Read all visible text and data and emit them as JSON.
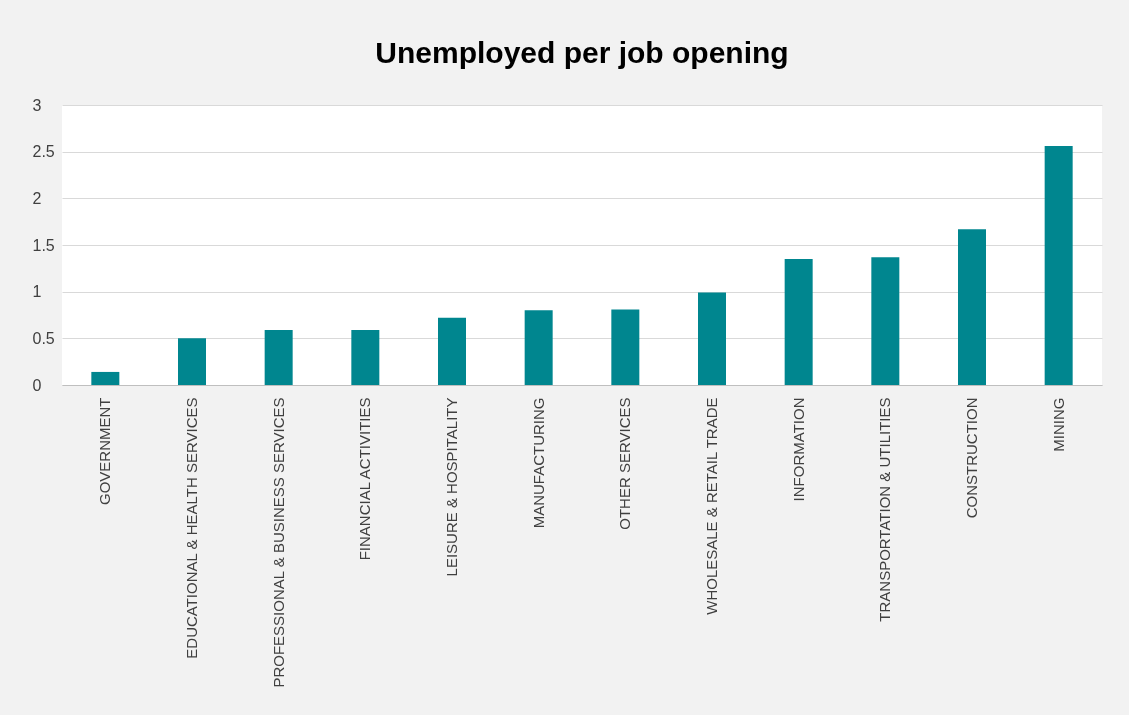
{
  "chart_data": {
    "type": "bar",
    "title": "Unemployed per job opening",
    "categories": [
      "GOVERNMENT",
      "EDUCATIONAL & HEALTH SERVICES",
      "PROFESSIONAL & BUSINESS SERVICES",
      "FINANCIAL ACTIVITIES",
      "LEISURE & HOSPITALITY",
      "MANUFACTURING",
      "OTHER SERVICES",
      "WHOLESALE & RETAIL TRADE",
      "INFORMATION",
      "TRANSPORTATION & UTILITIES",
      "CONSTRUCTION",
      "MINING"
    ],
    "values": [
      0.14,
      0.5,
      0.59,
      0.59,
      0.72,
      0.8,
      0.81,
      0.99,
      1.35,
      1.37,
      1.67,
      2.56
    ],
    "color": "#00868f",
    "ylim": [
      0,
      3
    ],
    "yticks": [
      0,
      0.5,
      1,
      1.5,
      2,
      2.5,
      3
    ],
    "grid": true
  }
}
